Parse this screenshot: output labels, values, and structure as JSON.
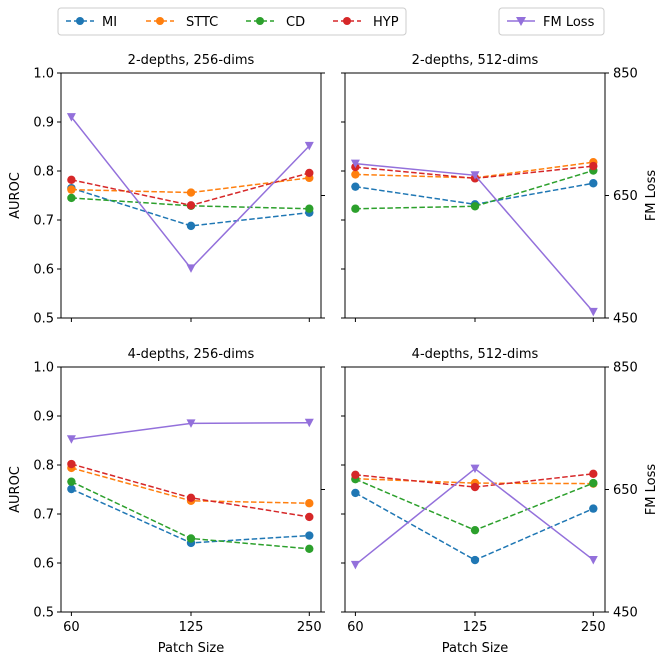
{
  "legend_left": [
    {
      "name": "MI",
      "color": "#1f77b4"
    },
    {
      "name": "STTC",
      "color": "#ff7f0e"
    },
    {
      "name": "CD",
      "color": "#2ca02c"
    },
    {
      "name": "HYP",
      "color": "#d62728"
    }
  ],
  "legend_right": {
    "name": "FM Loss",
    "color": "#9370db"
  },
  "chart_data": [
    {
      "type": "line",
      "title": "2-depths, 256-dims",
      "x": [
        60,
        125,
        250
      ],
      "xticklabels": [
        "60",
        "125",
        "250"
      ],
      "xlabel": "",
      "ylabel": "AUROC",
      "ylim": [
        0.5,
        1.0
      ],
      "yticks": [
        "0.5",
        "0.6",
        "0.7",
        "0.8",
        "0.9",
        "1.0"
      ],
      "y2label": "",
      "y2lim": [
        450,
        850
      ],
      "y2ticks": [],
      "series": [
        {
          "name": "MI",
          "values": [
            0.765,
            0.688,
            0.715
          ]
        },
        {
          "name": "STTC",
          "values": [
            0.762,
            0.756,
            0.786
          ]
        },
        {
          "name": "CD",
          "values": [
            0.745,
            0.729,
            0.723
          ]
        },
        {
          "name": "HYP",
          "values": [
            0.782,
            0.73,
            0.796
          ]
        }
      ],
      "secondary_series": {
        "name": "FM Loss",
        "values": [
          778,
          531,
          731
        ]
      }
    },
    {
      "type": "line",
      "title": "2-depths, 512-dims",
      "x": [
        60,
        125,
        250
      ],
      "xticklabels": [
        "60",
        "125",
        "250"
      ],
      "xlabel": "",
      "ylabel": "",
      "ylim": [
        0.5,
        1.0
      ],
      "yticks": [],
      "y2label": "FM Loss",
      "y2lim": [
        450,
        850
      ],
      "y2ticks": [
        "450",
        "650",
        "850"
      ],
      "series": [
        {
          "name": "MI",
          "values": [
            0.768,
            0.732,
            0.775
          ]
        },
        {
          "name": "STTC",
          "values": [
            0.793,
            0.786,
            0.818
          ]
        },
        {
          "name": "CD",
          "values": [
            0.723,
            0.728,
            0.801
          ]
        },
        {
          "name": "HYP",
          "values": [
            0.808,
            0.785,
            0.81
          ]
        }
      ],
      "secondary_series": {
        "name": "FM Loss",
        "values": [
          702,
          683,
          460
        ]
      }
    },
    {
      "type": "line",
      "title": "4-depths, 256-dims",
      "x": [
        60,
        125,
        250
      ],
      "xticklabels": [
        "60",
        "125",
        "250"
      ],
      "xlabel": "Patch Size",
      "ylabel": "AUROC",
      "ylim": [
        0.5,
        1.0
      ],
      "yticks": [
        "0.5",
        "0.6",
        "0.7",
        "0.8",
        "0.9",
        "1.0"
      ],
      "y2label": "",
      "y2lim": [
        450,
        850
      ],
      "y2ticks": [],
      "series": [
        {
          "name": "MI",
          "values": [
            0.751,
            0.641,
            0.656
          ]
        },
        {
          "name": "STTC",
          "values": [
            0.794,
            0.727,
            0.722
          ]
        },
        {
          "name": "CD",
          "values": [
            0.766,
            0.65,
            0.629
          ]
        },
        {
          "name": "HYP",
          "values": [
            0.802,
            0.733,
            0.694
          ]
        }
      ],
      "secondary_series": {
        "name": "FM Loss",
        "values": [
          732,
          758,
          759
        ]
      }
    },
    {
      "type": "line",
      "title": "4-depths, 512-dims",
      "x": [
        60,
        125,
        250
      ],
      "xticklabels": [
        "60",
        "125",
        "250"
      ],
      "xlabel": "Patch Size",
      "ylabel": "",
      "ylim": [
        0.5,
        1.0
      ],
      "yticks": [],
      "y2label": "FM Loss",
      "y2lim": [
        450,
        850
      ],
      "y2ticks": [
        "450",
        "650",
        "850"
      ],
      "series": [
        {
          "name": "MI",
          "values": [
            0.743,
            0.606,
            0.711
          ]
        },
        {
          "name": "STTC",
          "values": [
            0.772,
            0.763,
            0.762
          ]
        },
        {
          "name": "CD",
          "values": [
            0.771,
            0.667,
            0.763
          ]
        },
        {
          "name": "HYP",
          "values": [
            0.78,
            0.755,
            0.782
          ]
        }
      ],
      "secondary_series": {
        "name": "FM Loss",
        "values": [
          527,
          684,
          535
        ]
      }
    }
  ]
}
